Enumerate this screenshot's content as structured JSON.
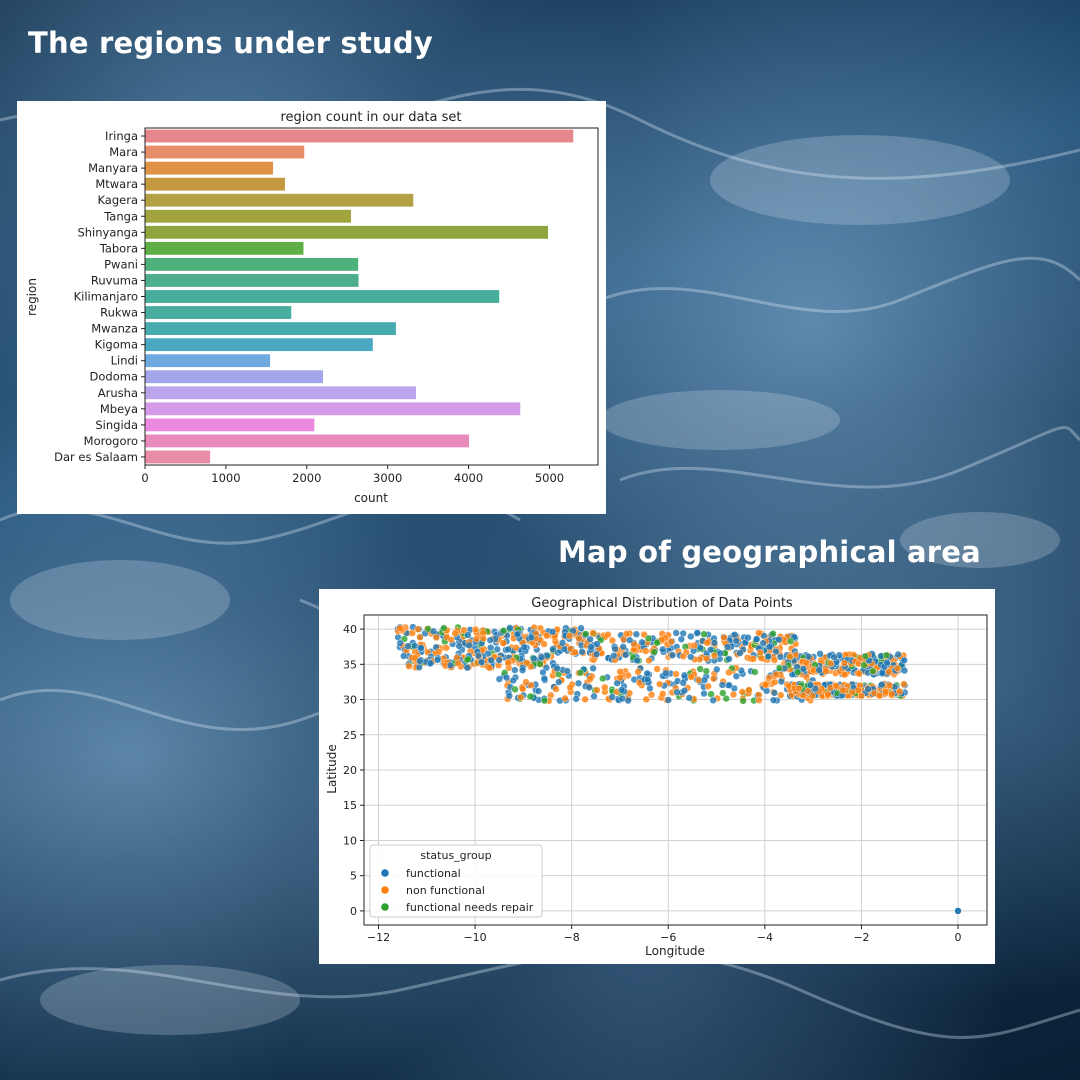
{
  "headings": {
    "regions": "The regions under study",
    "map": "Map of geographical area"
  },
  "chart_data": [
    {
      "type": "bar",
      "orientation": "horizontal",
      "title": "region count in our data set",
      "xlabel": "count",
      "ylabel": "region",
      "xlim": [
        0,
        5600
      ],
      "xticks": [
        0,
        1000,
        2000,
        3000,
        4000,
        5000
      ],
      "categories": [
        "Iringa",
        "Mara",
        "Manyara",
        "Mtwara",
        "Kagera",
        "Tanga",
        "Shinyanga",
        "Tabora",
        "Pwani",
        "Ruvuma",
        "Kilimanjaro",
        "Rukwa",
        "Mwanza",
        "Kigoma",
        "Lindi",
        "Dodoma",
        "Arusha",
        "Mbeya",
        "Singida",
        "Morogoro",
        "Dar es Salaam"
      ],
      "values": [
        5294,
        1969,
        1583,
        1730,
        3316,
        2547,
        4982,
        1959,
        2635,
        2640,
        4379,
        1808,
        3102,
        2816,
        1546,
        2201,
        3350,
        4639,
        2093,
        4006,
        805
      ],
      "colors": [
        "#e8868e",
        "#e78d6a",
        "#df9245",
        "#c59a3e",
        "#b3a146",
        "#a2a43e",
        "#8ea53d",
        "#5fae46",
        "#4eb07a",
        "#4cae8e",
        "#47ad9c",
        "#48ac9f",
        "#46aaae",
        "#4ba8c2",
        "#6ea9e0",
        "#a3a6ea",
        "#bba4ec",
        "#d59be9",
        "#ec8ae2",
        "#e98cbd",
        "#e98ca8"
      ]
    },
    {
      "type": "scatter",
      "title": "Geographical Distribution of Data Points",
      "xlabel": "Longitude",
      "ylabel": "Latitude",
      "xlim": [
        -12.3,
        0.6
      ],
      "ylim": [
        -2,
        42
      ],
      "xticks": [
        -12,
        -10,
        -8,
        -6,
        -4,
        -2,
        0
      ],
      "yticks": [
        0,
        5,
        10,
        15,
        20,
        25,
        30,
        35,
        40
      ],
      "grid": true,
      "legend": {
        "title": "status_group",
        "placement": "lower-left",
        "entries": [
          {
            "label": "functional",
            "color": "#1f77b4"
          },
          {
            "label": "non functional",
            "color": "#ff7f0e"
          },
          {
            "label": "functional needs repair",
            "color": "#2ca02c"
          }
        ]
      },
      "clusters": [
        {
          "x_range": [
            -11.6,
            -7.6
          ],
          "y_range": [
            36.5,
            40.3
          ],
          "density": "high"
        },
        {
          "x_range": [
            -7.6,
            -3.3
          ],
          "y_range": [
            35.5,
            39.5
          ],
          "density": "high"
        },
        {
          "x_range": [
            -3.6,
            -1.1
          ],
          "y_range": [
            33.5,
            36.5
          ],
          "density": "high"
        },
        {
          "x_range": [
            -11.5,
            -8.3
          ],
          "y_range": [
            34.5,
            36.3
          ],
          "density": "medium"
        },
        {
          "x_range": [
            -9.5,
            -3.0
          ],
          "y_range": [
            29.8,
            34.5
          ],
          "density": "high"
        },
        {
          "x_range": [
            -3.5,
            -1.1
          ],
          "y_range": [
            30.5,
            32.2
          ],
          "density": "high"
        }
      ],
      "outliers": [
        {
          "x": 0.0,
          "y": 0.0,
          "status": "functional"
        }
      ]
    }
  ]
}
